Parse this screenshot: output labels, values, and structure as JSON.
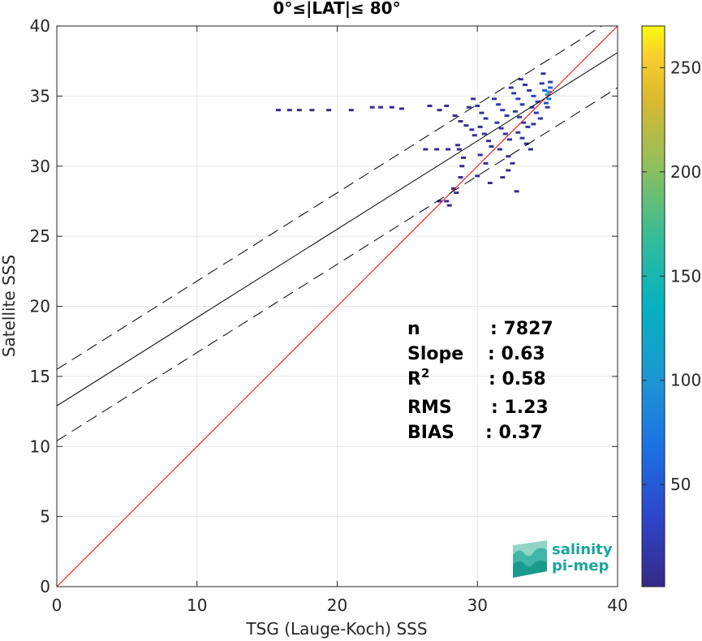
{
  "chart_data": {
    "type": "heatmap",
    "title": "0°≤|LAT|≤ 80°",
    "xlabel": "TSG (Lauge-Koch) SSS",
    "ylabel": "Satellite SSS",
    "xlim": [
      0,
      40
    ],
    "ylim": [
      0,
      40
    ],
    "xticks": [
      0,
      10,
      20,
      30,
      40
    ],
    "yticks": [
      0,
      5,
      10,
      15,
      20,
      25,
      30,
      35,
      40
    ],
    "grid": true,
    "colorbar": {
      "range": [
        1,
        270
      ],
      "ticks": [
        50,
        100,
        150,
        200,
        250
      ],
      "colormap": "parula"
    },
    "lines": [
      {
        "name": "1:1 line",
        "style": "solid",
        "color": "#ff0000",
        "x": [
          0,
          40
        ],
        "y": [
          0,
          40
        ]
      },
      {
        "name": "regression",
        "style": "solid",
        "color": "#000000",
        "x": [
          0,
          40
        ],
        "y": [
          12.9,
          38.1
        ]
      },
      {
        "name": "regression + 2σ",
        "style": "dashed",
        "color": "#000000",
        "x": [
          0,
          40
        ],
        "y": [
          15.5,
          40.7
        ]
      },
      {
        "name": "regression - 2σ",
        "style": "dashed",
        "color": "#000000",
        "x": [
          0,
          40
        ],
        "y": [
          10.4,
          35.6
        ]
      }
    ],
    "points": [
      {
        "x": 15.8,
        "y": 34.0,
        "c": 2
      },
      {
        "x": 16.6,
        "y": 34.0,
        "c": 2
      },
      {
        "x": 17.3,
        "y": 34.0,
        "c": 2
      },
      {
        "x": 18.2,
        "y": 34.0,
        "c": 3
      },
      {
        "x": 19.4,
        "y": 34.0,
        "c": 2
      },
      {
        "x": 21.0,
        "y": 34.0,
        "c": 2
      },
      {
        "x": 22.5,
        "y": 34.2,
        "c": 3
      },
      {
        "x": 23.1,
        "y": 34.2,
        "c": 4
      },
      {
        "x": 23.9,
        "y": 34.2,
        "c": 3
      },
      {
        "x": 24.6,
        "y": 34.1,
        "c": 2
      },
      {
        "x": 26.6,
        "y": 34.3,
        "c": 5
      },
      {
        "x": 27.3,
        "y": 34.0,
        "c": 4
      },
      {
        "x": 27.8,
        "y": 34.3,
        "c": 3
      },
      {
        "x": 26.3,
        "y": 31.2,
        "c": 4
      },
      {
        "x": 27.1,
        "y": 31.2,
        "c": 5
      },
      {
        "x": 27.9,
        "y": 31.2,
        "c": 4
      },
      {
        "x": 28.7,
        "y": 31.2,
        "c": 6
      },
      {
        "x": 27.8,
        "y": 27.5,
        "c": 8
      },
      {
        "x": 27.3,
        "y": 27.5,
        "c": 6
      },
      {
        "x": 28.0,
        "y": 27.2,
        "c": 5
      },
      {
        "x": 28.5,
        "y": 28.1,
        "c": 9
      },
      {
        "x": 28.3,
        "y": 28.4,
        "c": 7
      },
      {
        "x": 28.8,
        "y": 29.2,
        "c": 6
      },
      {
        "x": 28.9,
        "y": 30.0,
        "c": 5
      },
      {
        "x": 29.0,
        "y": 30.6,
        "c": 7
      },
      {
        "x": 28.6,
        "y": 31.5,
        "c": 6
      },
      {
        "x": 28.4,
        "y": 33.6,
        "c": 5
      },
      {
        "x": 28.8,
        "y": 33.2,
        "c": 6
      },
      {
        "x": 29.2,
        "y": 32.9,
        "c": 8
      },
      {
        "x": 29.6,
        "y": 32.6,
        "c": 9
      },
      {
        "x": 29.8,
        "y": 32.2,
        "c": 10
      },
      {
        "x": 29.4,
        "y": 34.2,
        "c": 12
      },
      {
        "x": 29.7,
        "y": 34.8,
        "c": 9
      },
      {
        "x": 30.0,
        "y": 34.3,
        "c": 14
      },
      {
        "x": 30.3,
        "y": 33.8,
        "c": 11
      },
      {
        "x": 30.6,
        "y": 33.4,
        "c": 12
      },
      {
        "x": 30.2,
        "y": 32.8,
        "c": 10
      },
      {
        "x": 30.5,
        "y": 32.3,
        "c": 11
      },
      {
        "x": 30.8,
        "y": 31.8,
        "c": 9
      },
      {
        "x": 31.0,
        "y": 31.4,
        "c": 8
      },
      {
        "x": 30.2,
        "y": 30.8,
        "c": 7
      },
      {
        "x": 30.6,
        "y": 30.2,
        "c": 6
      },
      {
        "x": 30.0,
        "y": 29.3,
        "c": 5
      },
      {
        "x": 30.9,
        "y": 28.8,
        "c": 6
      },
      {
        "x": 31.2,
        "y": 34.8,
        "c": 15
      },
      {
        "x": 31.5,
        "y": 34.4,
        "c": 18
      },
      {
        "x": 31.8,
        "y": 34.0,
        "c": 20
      },
      {
        "x": 32.1,
        "y": 33.6,
        "c": 22
      },
      {
        "x": 31.4,
        "y": 33.1,
        "c": 16
      },
      {
        "x": 31.7,
        "y": 32.7,
        "c": 14
      },
      {
        "x": 32.0,
        "y": 32.3,
        "c": 13
      },
      {
        "x": 32.3,
        "y": 31.9,
        "c": 12
      },
      {
        "x": 31.6,
        "y": 31.2,
        "c": 9
      },
      {
        "x": 32.2,
        "y": 30.7,
        "c": 8
      },
      {
        "x": 32.5,
        "y": 30.2,
        "c": 7
      },
      {
        "x": 32.2,
        "y": 29.7,
        "c": 6
      },
      {
        "x": 31.8,
        "y": 29.2,
        "c": 5
      },
      {
        "x": 32.8,
        "y": 28.2,
        "c": 4
      },
      {
        "x": 32.4,
        "y": 35.6,
        "c": 12
      },
      {
        "x": 32.6,
        "y": 35.2,
        "c": 18
      },
      {
        "x": 32.9,
        "y": 34.8,
        "c": 24
      },
      {
        "x": 33.2,
        "y": 34.4,
        "c": 26
      },
      {
        "x": 32.7,
        "y": 33.9,
        "c": 20
      },
      {
        "x": 33.0,
        "y": 33.5,
        "c": 19
      },
      {
        "x": 33.3,
        "y": 33.1,
        "c": 17
      },
      {
        "x": 33.6,
        "y": 32.8,
        "c": 15
      },
      {
        "x": 32.9,
        "y": 32.4,
        "c": 12
      },
      {
        "x": 33.2,
        "y": 32.0,
        "c": 10
      },
      {
        "x": 33.5,
        "y": 31.6,
        "c": 9
      },
      {
        "x": 33.8,
        "y": 31.2,
        "c": 7
      },
      {
        "x": 33.1,
        "y": 36.2,
        "c": 8
      },
      {
        "x": 33.4,
        "y": 35.8,
        "c": 10
      },
      {
        "x": 33.7,
        "y": 35.4,
        "c": 14
      },
      {
        "x": 34.0,
        "y": 35.0,
        "c": 30
      },
      {
        "x": 34.3,
        "y": 34.6,
        "c": 35
      },
      {
        "x": 33.9,
        "y": 34.2,
        "c": 28
      },
      {
        "x": 34.2,
        "y": 33.8,
        "c": 22
      },
      {
        "x": 34.5,
        "y": 33.4,
        "c": 16
      },
      {
        "x": 34.0,
        "y": 33.0,
        "c": 12
      },
      {
        "x": 34.7,
        "y": 36.6,
        "c": 10
      },
      {
        "x": 34.6,
        "y": 35.9,
        "c": 20
      },
      {
        "x": 34.8,
        "y": 35.4,
        "c": 45
      },
      {
        "x": 35.0,
        "y": 35.1,
        "c": 120
      },
      {
        "x": 35.1,
        "y": 35.3,
        "c": 90
      },
      {
        "x": 35.2,
        "y": 35.6,
        "c": 60
      },
      {
        "x": 35.1,
        "y": 34.8,
        "c": 70
      },
      {
        "x": 34.9,
        "y": 34.5,
        "c": 40
      },
      {
        "x": 35.2,
        "y": 36.0,
        "c": 25
      },
      {
        "x": 35.0,
        "y": 34.2,
        "c": 18
      }
    ],
    "stats": [
      {
        "label": "n",
        "value": ": 7827"
      },
      {
        "label": "Slope",
        "value": ": 0.63"
      },
      {
        "label": "R",
        "sup": "2",
        "value": ": 0.58"
      },
      {
        "label": "RMS",
        "value": ": 1.23"
      },
      {
        "label": "BIAS",
        "value": ": 0.37"
      }
    ]
  },
  "logo": {
    "line1": "salinity",
    "line2": "pi-mep",
    "color": "#1aa59a"
  }
}
